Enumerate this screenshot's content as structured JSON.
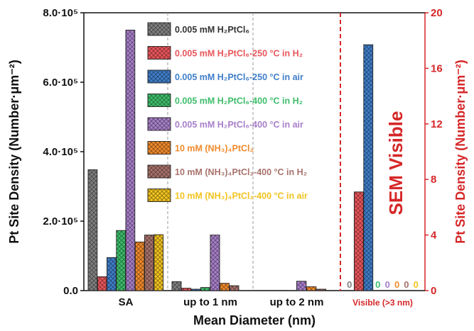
{
  "chart_data": {
    "type": "bar",
    "xlabel": "Mean Diameter (nm)",
    "ylabel_left": "Pt Site Density (Number·μm⁻²)",
    "ylabel_right": "Pt Site Density (Number·μm⁻²)",
    "categories": [
      "SA",
      "up to 1 nm",
      "up to 2 nm",
      "Visible (>3 nm)"
    ],
    "left_axis": {
      "min": 0,
      "max": 800000,
      "ticks": [
        {
          "value": 0,
          "label": "0.0"
        },
        {
          "value": 200000,
          "label": "2.0·10⁵"
        },
        {
          "value": 400000,
          "label": "4.0·10⁵"
        },
        {
          "value": 600000,
          "label": "6.0·10⁵"
        },
        {
          "value": 800000,
          "label": "8.0·10⁵"
        }
      ]
    },
    "right_axis": {
      "min": 0,
      "max": 20,
      "ticks": [
        {
          "value": 0,
          "label": "0"
        },
        {
          "value": 4,
          "label": "4"
        },
        {
          "value": 8,
          "label": "8"
        },
        {
          "value": 12,
          "label": "12"
        },
        {
          "value": 16,
          "label": "16"
        },
        {
          "value": 20,
          "label": "20"
        }
      ]
    },
    "annotation": "SEM Visible",
    "legend_position": "top-center",
    "series": [
      {
        "name": "0.005 mM H₂PtCl₆",
        "color": "#7f7f7f",
        "values": [
          348000,
          26000,
          0,
          0
        ],
        "visible_label": "0"
      },
      {
        "name": "0.005 mM H₂PtCl₆-250 °C in H₂",
        "color": "#e8555a",
        "values": [
          40000,
          7000,
          0,
          7.1
        ],
        "visible_label": ""
      },
      {
        "name": "0.005 mM H₂PtCl₆-250 °C in air",
        "color": "#3f7ec9",
        "values": [
          95000,
          4000,
          0,
          17.7
        ],
        "visible_label": ""
      },
      {
        "name": "0.005 mM H₂PtCl₆-400 °C in H₂",
        "color": "#3dbd6a",
        "values": [
          173000,
          9000,
          0,
          0
        ],
        "visible_label": "0"
      },
      {
        "name": "0.005 mM H₂PtCl₆-400 °C in air",
        "color": "#a77fc9",
        "values": [
          750000,
          160000,
          27000,
          0
        ],
        "visible_label": "0"
      },
      {
        "name": "10 mM (NH₃)₄PtCl₂",
        "color": "#f08a2c",
        "values": [
          140000,
          21000,
          11000,
          0
        ],
        "visible_label": "0"
      },
      {
        "name": "10 mM (NH₃)₄PtCl₂-400 °C in H₂",
        "color": "#a8726c",
        "values": [
          160000,
          14000,
          4000,
          0
        ],
        "visible_label": "0"
      },
      {
        "name": "10 mM (NH₃)₄PtCl₂-400 °C in air",
        "color": "#f2c31f",
        "values": [
          161000,
          0,
          0,
          0
        ],
        "visible_label": "0"
      }
    ]
  }
}
